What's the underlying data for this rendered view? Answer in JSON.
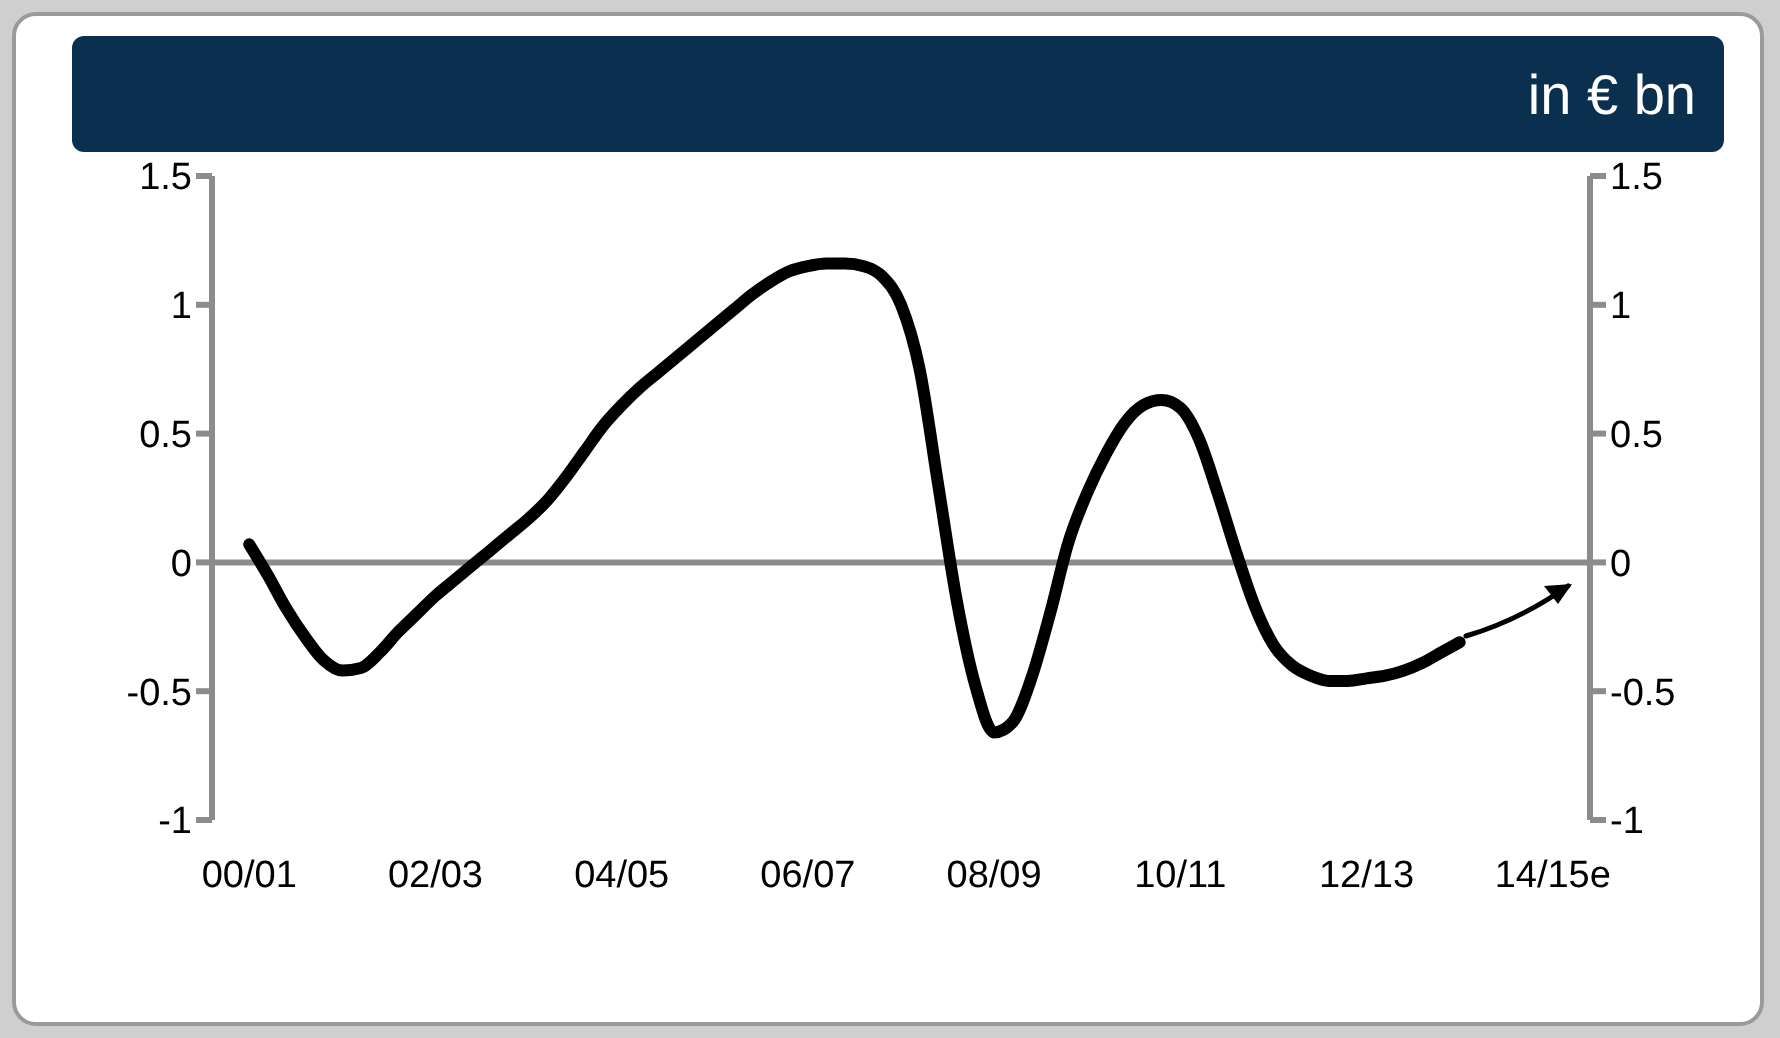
{
  "chart_data": {
    "type": "line",
    "subtitle": "in € bn",
    "categories": [
      null,
      null,
      "00/01",
      null,
      null,
      null,
      null,
      null,
      null,
      null,
      null,
      null,
      "02/03",
      null,
      null,
      null,
      null,
      null,
      null,
      null,
      null,
      null,
      "04/05",
      null,
      null,
      null,
      null,
      null,
      null,
      null,
      null,
      null,
      "06/07",
      null,
      null,
      null,
      null,
      null,
      null,
      null,
      null,
      null,
      "08/09",
      null,
      null,
      null,
      null,
      null,
      null,
      null,
      null,
      null,
      "10/11",
      null,
      null,
      null,
      null,
      null,
      null,
      null,
      null,
      null,
      "12/13",
      null,
      null,
      null,
      null,
      null,
      null,
      null,
      null,
      null,
      "14/15e",
      null,
      null
    ],
    "series": [
      {
        "color": "#000000",
        "values": [
          null,
          null,
          0.07,
          -0.05,
          -0.18,
          -0.29,
          -0.38,
          -0.42,
          -0.41,
          -0.35,
          -0.27,
          -0.2,
          -0.13,
          -0.07,
          -0.01,
          0.05,
          0.11,
          0.17,
          0.24,
          0.33,
          0.43,
          0.53,
          0.61,
          0.68,
          0.74,
          0.8,
          0.86,
          0.92,
          0.98,
          1.04,
          1.09,
          1.13,
          1.15,
          1.16,
          1.16,
          1.15,
          1.11,
          1.0,
          0.75,
          0.3,
          -0.15,
          -0.48,
          -0.66,
          -0.62,
          -0.45,
          -0.2,
          0.08,
          0.27,
          0.42,
          0.54,
          0.61,
          0.63,
          0.6,
          0.48,
          0.27,
          0.04,
          -0.17,
          -0.32,
          -0.4,
          -0.44,
          -0.46,
          -0.46,
          -0.45,
          -0.44,
          -0.42,
          -0.39,
          -0.35,
          -0.31,
          null,
          null,
          null,
          null,
          null,
          null,
          null
        ]
      }
    ],
    "ylim": [
      -1,
      1.5
    ],
    "yticks": [
      -1,
      -0.5,
      0,
      0.5,
      1,
      1.5
    ],
    "y2lim": [
      -1,
      1.5
    ],
    "y2ticks": [
      -1,
      -0.5,
      0,
      0.5,
      1,
      1.5
    ],
    "ref_lines": [
      {
        "axis": "y",
        "value": 0,
        "color": "#8c8c8c"
      }
    ],
    "grid": false,
    "legend": false,
    "marker": "none",
    "line_style": "solid"
  }
}
